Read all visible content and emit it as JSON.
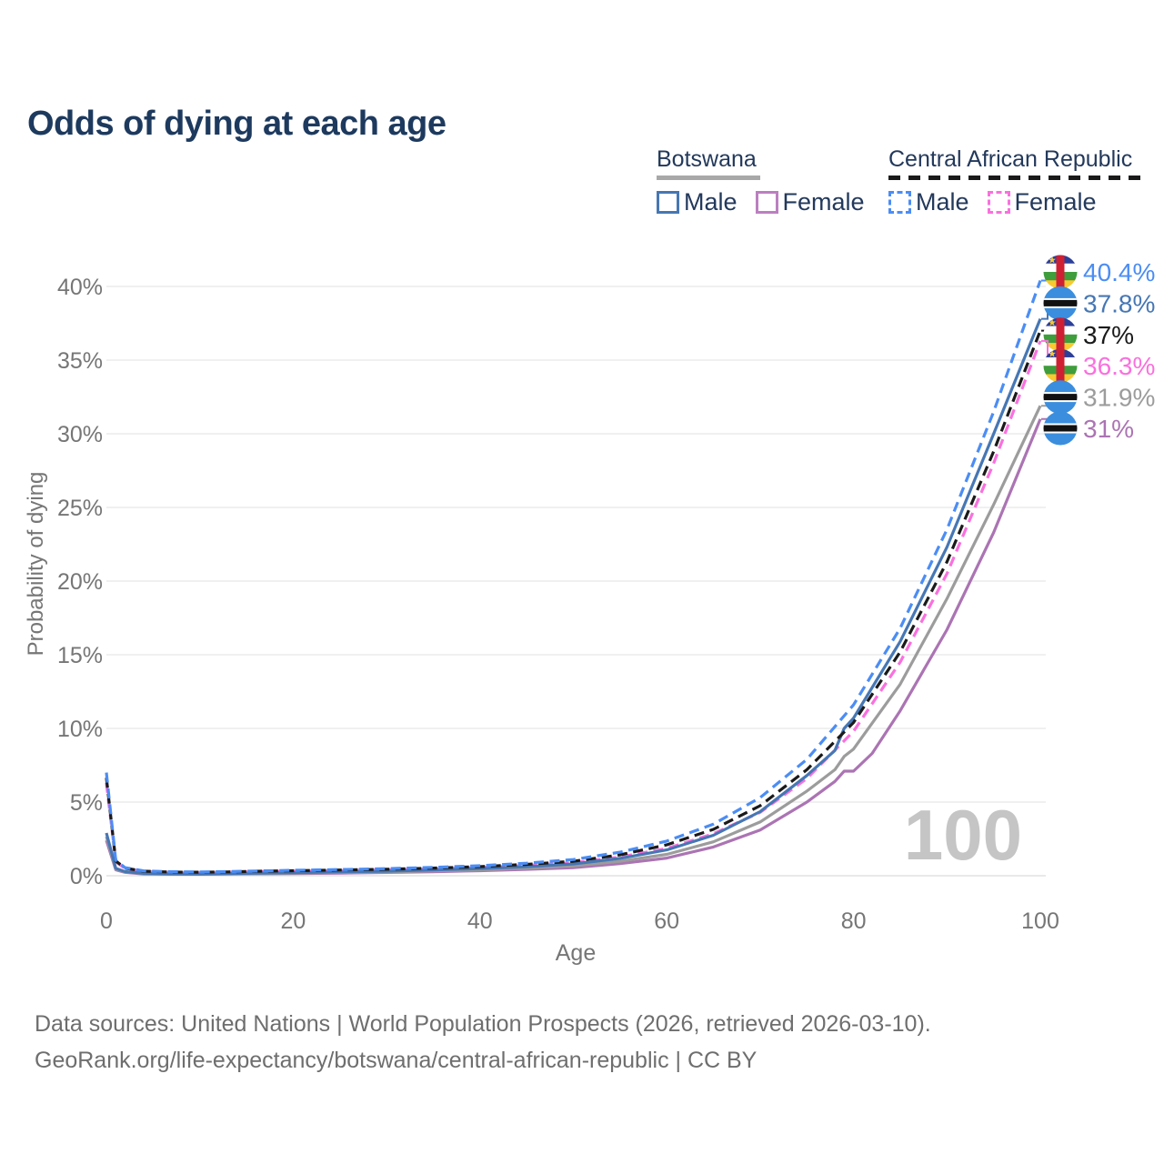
{
  "title": "Odds of dying at each age",
  "legend": {
    "groups": [
      {
        "country": "Botswana",
        "underline_color": "#a8a8a8",
        "underline_style": "solid",
        "items": [
          {
            "label": "Male",
            "color": "#4677b4",
            "dashed": false
          },
          {
            "label": "Female",
            "color": "#bb7fc0",
            "dashed": false
          }
        ]
      },
      {
        "country": "Central African Republic",
        "underline_color": "#1a1a1a",
        "underline_style": "dashed",
        "items": [
          {
            "label": "Male",
            "color": "#4b8df5",
            "dashed": true
          },
          {
            "label": "Female",
            "color": "#fa70de",
            "dashed": true
          }
        ]
      }
    ]
  },
  "chart_data": {
    "type": "line",
    "title": "Odds of dying at each age",
    "xlabel": "Age",
    "ylabel": "Probability of dying",
    "xlim": [
      0,
      100
    ],
    "ylim": [
      0,
      42
    ],
    "x_ticks": [
      0,
      20,
      40,
      60,
      80,
      100
    ],
    "y_ticks": [
      0,
      5,
      10,
      15,
      20,
      25,
      30,
      35,
      40
    ],
    "y_tick_suffix": "%",
    "grid": "horizontal",
    "legend_position": "top-right",
    "watermark": "100",
    "colors": {
      "grid": "#ececec",
      "zero_line": "#e2e2e2",
      "axis_text": "#767676",
      "watermark": "#c5c5c5",
      "title_text": "#1d3a5e"
    },
    "draw_order": [
      "bw-female",
      "bw-both",
      "cf-female",
      "bw-male",
      "cf-both",
      "cf-male"
    ],
    "label_order": [
      "cf-male",
      "bw-male",
      "cf-both",
      "cf-female",
      "bw-both",
      "bw-female"
    ],
    "series": [
      {
        "id": "cf-male",
        "country": "Central African Republic",
        "sex": "Male",
        "color": "#4b8df5",
        "dashed": true,
        "flag": "cf",
        "end_value": 40.4,
        "label": "40.4%",
        "points": [
          [
            0,
            7.0
          ],
          [
            1,
            1.05
          ],
          [
            2,
            0.55
          ],
          [
            4,
            0.33
          ],
          [
            7,
            0.27
          ],
          [
            10,
            0.26
          ],
          [
            13,
            0.28
          ],
          [
            16,
            0.32
          ],
          [
            20,
            0.37
          ],
          [
            25,
            0.42
          ],
          [
            30,
            0.48
          ],
          [
            35,
            0.57
          ],
          [
            40,
            0.68
          ],
          [
            45,
            0.85
          ],
          [
            50,
            1.1
          ],
          [
            55,
            1.6
          ],
          [
            60,
            2.35
          ],
          [
            65,
            3.5
          ],
          [
            70,
            5.3
          ],
          [
            75,
            7.9
          ],
          [
            80,
            11.6
          ],
          [
            85,
            16.8
          ],
          [
            90,
            23.5
          ],
          [
            95,
            31.5
          ],
          [
            100,
            40.4
          ]
        ]
      },
      {
        "id": "bw-male",
        "country": "Botswana",
        "sex": "Male",
        "color": "#4677b4",
        "dashed": false,
        "flag": "bw",
        "end_value": 37.8,
        "label": "37.8%",
        "points": [
          [
            0,
            2.9
          ],
          [
            1,
            0.5
          ],
          [
            2,
            0.28
          ],
          [
            4,
            0.16
          ],
          [
            7,
            0.13
          ],
          [
            10,
            0.12
          ],
          [
            13,
            0.14
          ],
          [
            16,
            0.17
          ],
          [
            20,
            0.21
          ],
          [
            25,
            0.26
          ],
          [
            30,
            0.31
          ],
          [
            35,
            0.39
          ],
          [
            40,
            0.49
          ],
          [
            45,
            0.62
          ],
          [
            50,
            0.8
          ],
          [
            55,
            1.18
          ],
          [
            60,
            1.75
          ],
          [
            65,
            2.75
          ],
          [
            70,
            4.35
          ],
          [
            75,
            6.8
          ],
          [
            78,
            8.5
          ],
          [
            79,
            10.0
          ],
          [
            80,
            10.7
          ],
          [
            85,
            15.9
          ],
          [
            90,
            22.3
          ],
          [
            95,
            30.0
          ],
          [
            100,
            37.8
          ]
        ]
      },
      {
        "id": "cf-both",
        "country": "Central African Republic",
        "sex": "Both",
        "color": "#1a1a1a",
        "dashed": true,
        "flag": "cf",
        "end_value": 37.0,
        "label": "37%",
        "points": [
          [
            0,
            6.65
          ],
          [
            1,
            1.0
          ],
          [
            2,
            0.52
          ],
          [
            4,
            0.31
          ],
          [
            7,
            0.25
          ],
          [
            10,
            0.24
          ],
          [
            13,
            0.26
          ],
          [
            16,
            0.3
          ],
          [
            20,
            0.34
          ],
          [
            25,
            0.39
          ],
          [
            30,
            0.44
          ],
          [
            35,
            0.52
          ],
          [
            40,
            0.62
          ],
          [
            45,
            0.77
          ],
          [
            50,
            0.98
          ],
          [
            55,
            1.42
          ],
          [
            60,
            2.1
          ],
          [
            65,
            3.15
          ],
          [
            70,
            4.75
          ],
          [
            75,
            7.2
          ],
          [
            80,
            10.4
          ],
          [
            85,
            15.2
          ],
          [
            90,
            21.3
          ],
          [
            95,
            28.8
          ],
          [
            100,
            37.0
          ]
        ]
      },
      {
        "id": "cf-female",
        "country": "Central African Republic",
        "sex": "Female",
        "color": "#fa70de",
        "dashed": true,
        "flag": "cf",
        "end_value": 36.3,
        "label": "36.3%",
        "points": [
          [
            0,
            6.3
          ],
          [
            1,
            0.95
          ],
          [
            2,
            0.49
          ],
          [
            4,
            0.29
          ],
          [
            7,
            0.23
          ],
          [
            10,
            0.22
          ],
          [
            13,
            0.24
          ],
          [
            16,
            0.27
          ],
          [
            20,
            0.31
          ],
          [
            25,
            0.35
          ],
          [
            30,
            0.4
          ],
          [
            35,
            0.47
          ],
          [
            40,
            0.56
          ],
          [
            45,
            0.7
          ],
          [
            50,
            0.88
          ],
          [
            55,
            1.27
          ],
          [
            60,
            1.85
          ],
          [
            65,
            2.85
          ],
          [
            70,
            4.3
          ],
          [
            75,
            6.6
          ],
          [
            80,
            9.8
          ],
          [
            85,
            14.5
          ],
          [
            90,
            20.5
          ],
          [
            95,
            28.0
          ],
          [
            100,
            36.3
          ]
        ]
      },
      {
        "id": "bw-both",
        "country": "Botswana",
        "sex": "Both",
        "color": "#9c9c9c",
        "dashed": false,
        "flag": "bw",
        "end_value": 31.9,
        "label": "31.9%",
        "points": [
          [
            0,
            2.65
          ],
          [
            1,
            0.45
          ],
          [
            2,
            0.26
          ],
          [
            4,
            0.14
          ],
          [
            7,
            0.12
          ],
          [
            10,
            0.11
          ],
          [
            13,
            0.13
          ],
          [
            16,
            0.15
          ],
          [
            20,
            0.18
          ],
          [
            25,
            0.22
          ],
          [
            30,
            0.26
          ],
          [
            35,
            0.33
          ],
          [
            40,
            0.41
          ],
          [
            45,
            0.52
          ],
          [
            50,
            0.67
          ],
          [
            55,
            0.98
          ],
          [
            60,
            1.45
          ],
          [
            65,
            2.3
          ],
          [
            70,
            3.65
          ],
          [
            75,
            5.75
          ],
          [
            78,
            7.2
          ],
          [
            79,
            8.1
          ],
          [
            80,
            8.6
          ],
          [
            85,
            13.0
          ],
          [
            90,
            18.8
          ],
          [
            95,
            25.2
          ],
          [
            100,
            31.9
          ]
        ]
      },
      {
        "id": "bw-female",
        "country": "Botswana",
        "sex": "Female",
        "color": "#ab74b3",
        "dashed": false,
        "flag": "bw",
        "end_value": 31.0,
        "label": "31%",
        "points": [
          [
            0,
            2.4
          ],
          [
            1,
            0.4
          ],
          [
            2,
            0.23
          ],
          [
            4,
            0.12
          ],
          [
            7,
            0.1
          ],
          [
            10,
            0.1
          ],
          [
            13,
            0.11
          ],
          [
            16,
            0.13
          ],
          [
            20,
            0.15
          ],
          [
            25,
            0.18
          ],
          [
            30,
            0.22
          ],
          [
            35,
            0.27
          ],
          [
            40,
            0.34
          ],
          [
            45,
            0.43
          ],
          [
            50,
            0.55
          ],
          [
            55,
            0.82
          ],
          [
            60,
            1.2
          ],
          [
            65,
            1.95
          ],
          [
            70,
            3.1
          ],
          [
            75,
            5.0
          ],
          [
            78,
            6.4
          ],
          [
            79,
            7.1
          ],
          [
            80,
            7.1
          ],
          [
            82,
            8.3
          ],
          [
            85,
            11.2
          ],
          [
            90,
            16.7
          ],
          [
            95,
            23.3
          ],
          [
            100,
            31.0
          ]
        ]
      }
    ],
    "flag_colors": {
      "bw": {
        "blue": "#3b8ede",
        "white": "#ffffff",
        "black": "#111111"
      },
      "cf": {
        "blue": "#2c3f99",
        "white": "#ffffff",
        "green": "#3f9d3c",
        "yellow": "#f8c931",
        "red": "#cf2033"
      }
    }
  },
  "footer": {
    "line1": "Data sources: United Nations | World Population Prospects (2026, retrieved 2026-03-10).",
    "line2": "GeoRank.org/life-expectancy/botswana/central-african-republic | CC BY"
  }
}
